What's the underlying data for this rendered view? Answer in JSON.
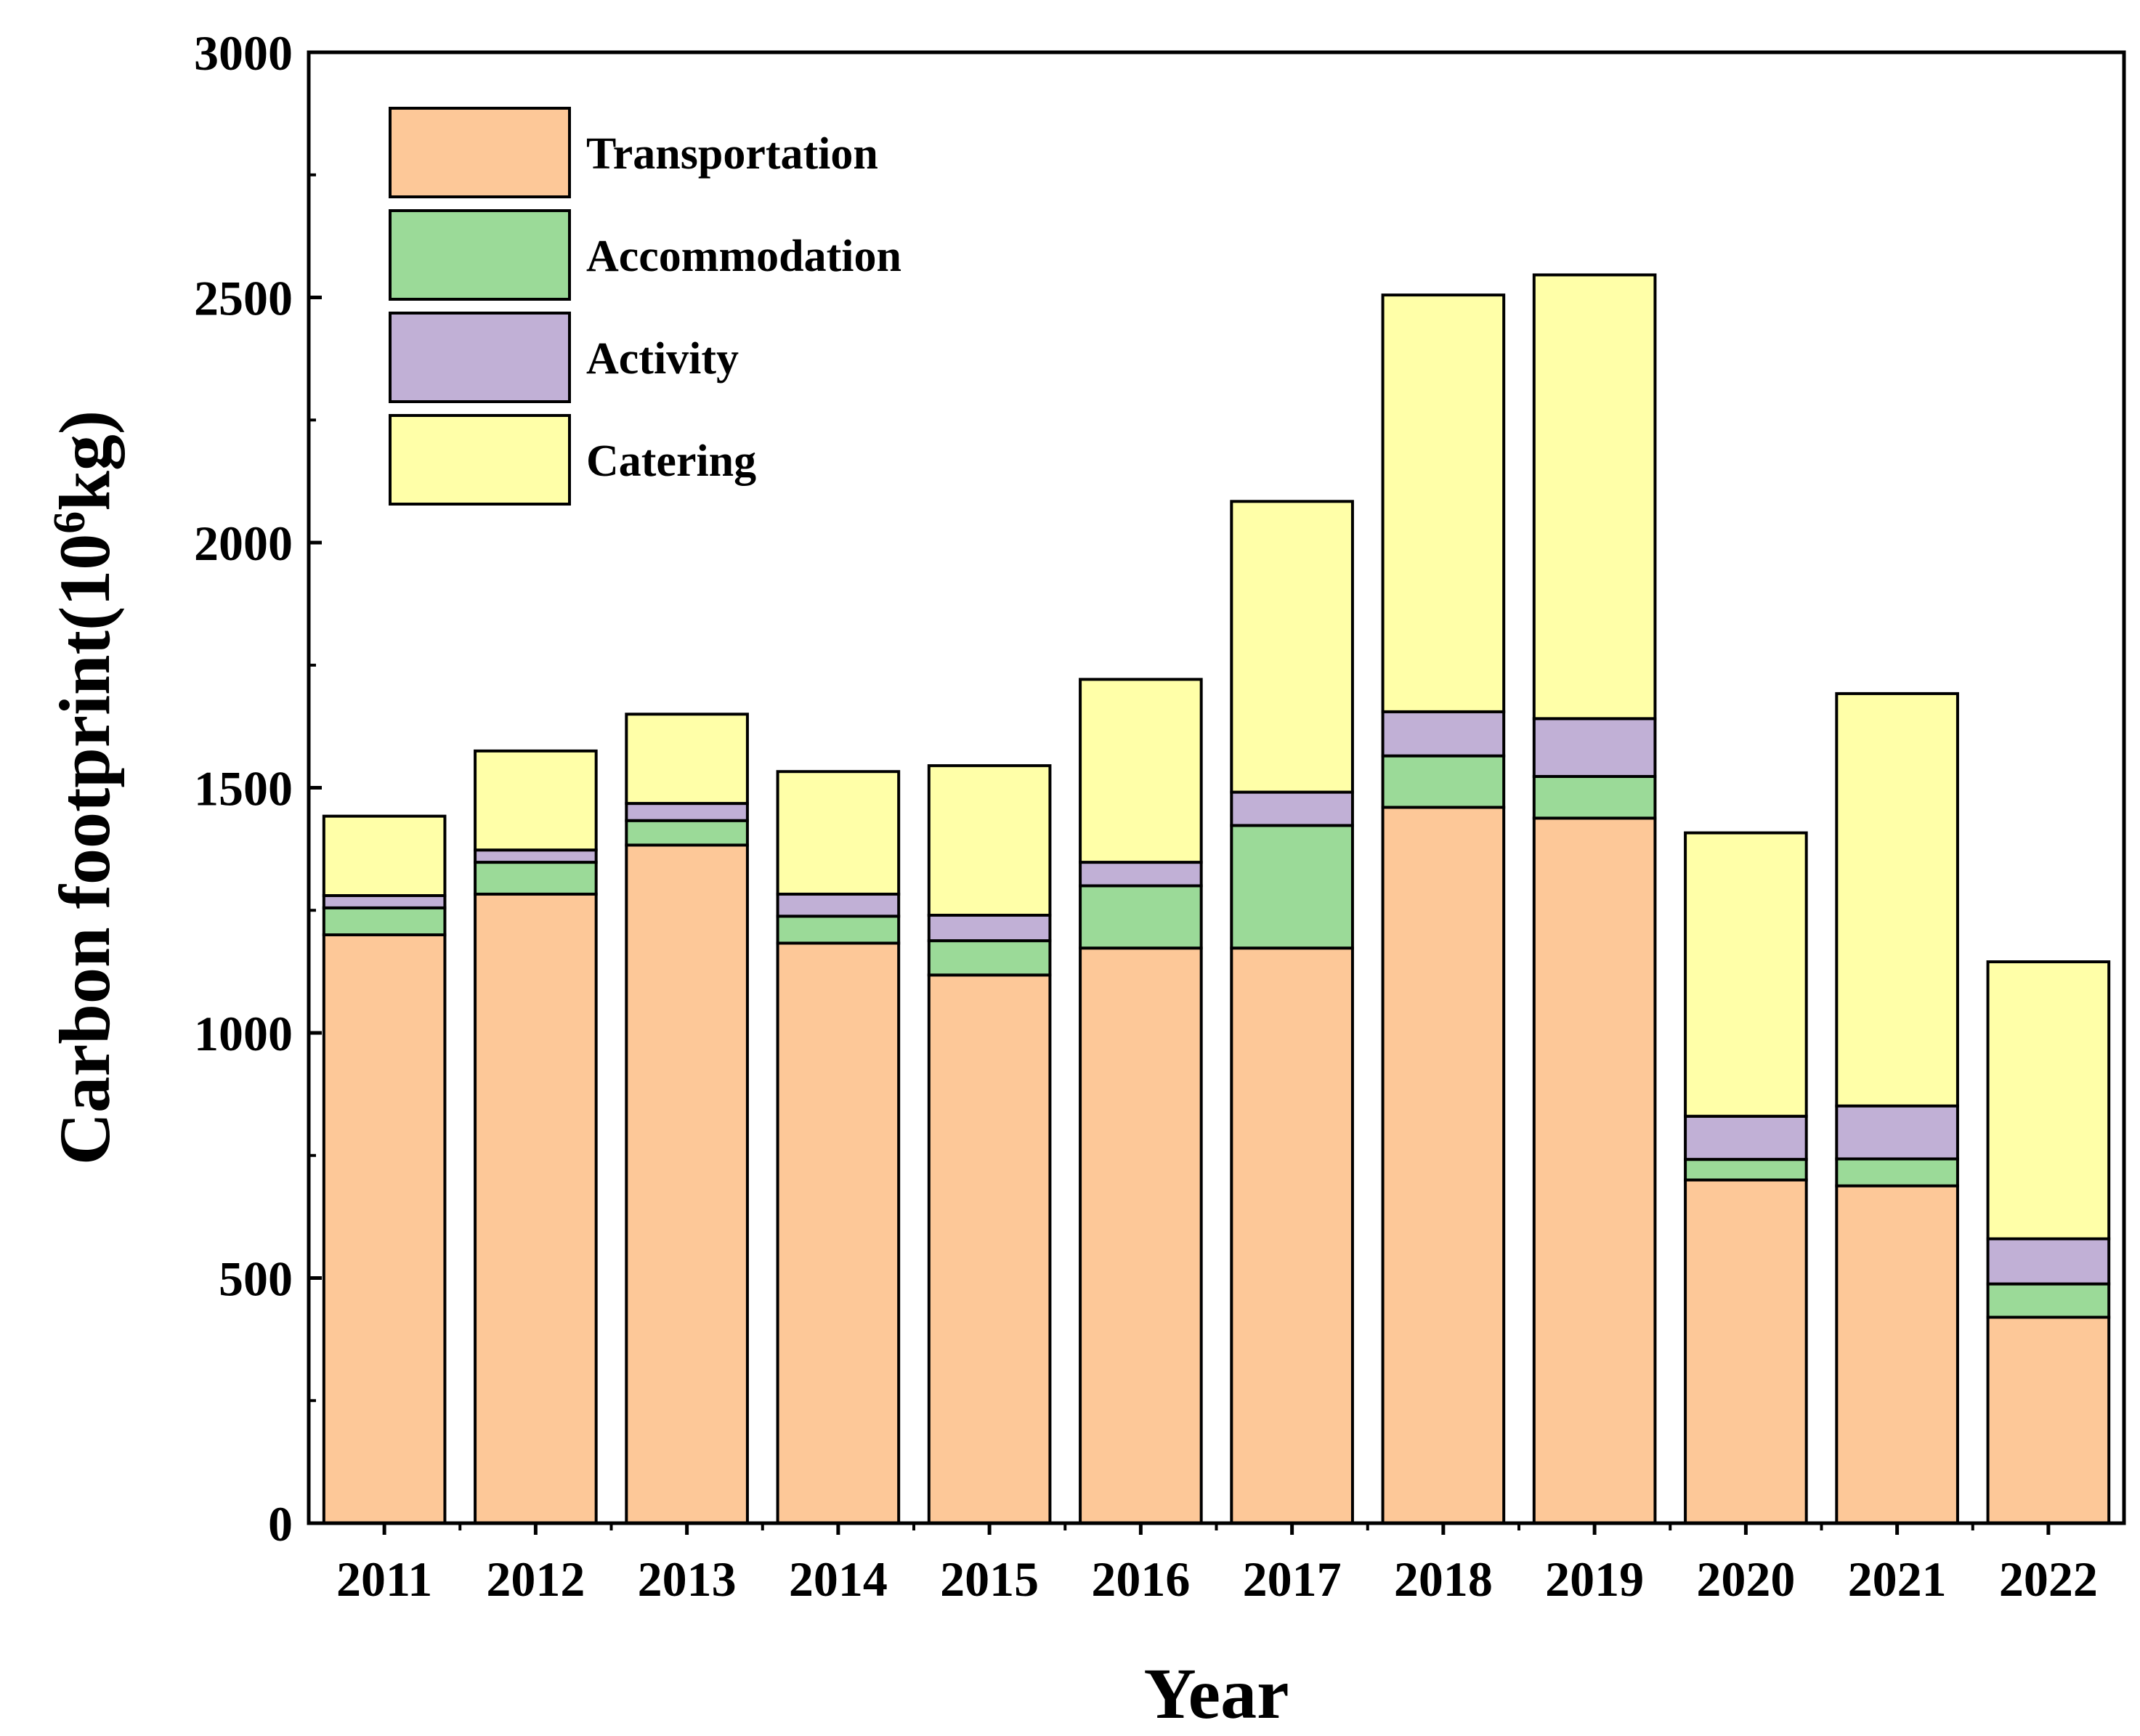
{
  "chart_data": {
    "type": "bar",
    "stacked": true,
    "title": "",
    "xlabel": "Year",
    "ylabel_main": "Carbon footprint(10",
    "ylabel_sup": "6",
    "ylabel_end": "kg)",
    "ylim": [
      0,
      3000
    ],
    "yticks": [
      0,
      500,
      1000,
      1500,
      2000,
      2500,
      3000
    ],
    "categories": [
      "2011",
      "2012",
      "2013",
      "2014",
      "2015",
      "2016",
      "2017",
      "2018",
      "2019",
      "2020",
      "2021",
      "2022"
    ],
    "series": [
      {
        "name": "Transportation",
        "color": "#FDC898",
        "values": [
          1200,
          1283,
          1383,
          1183,
          1118,
          1173,
          1173,
          1460,
          1438,
          700,
          688,
          420
        ]
      },
      {
        "name": "Accommodation",
        "color": "#9BDA98",
        "values": [
          55,
          65,
          50,
          55,
          70,
          127,
          250,
          105,
          85,
          42,
          55,
          68
        ]
      },
      {
        "name": "Activity",
        "color": "#C1B0D6",
        "values": [
          25,
          25,
          35,
          45,
          52,
          48,
          68,
          90,
          118,
          88,
          108,
          92
        ]
      },
      {
        "name": "Catering",
        "color": "#FFFFA8",
        "values": [
          162,
          202,
          182,
          250,
          305,
          373,
          593,
          850,
          905,
          578,
          841,
          565
        ]
      }
    ],
    "legend_position": "top-left",
    "grid": false
  }
}
